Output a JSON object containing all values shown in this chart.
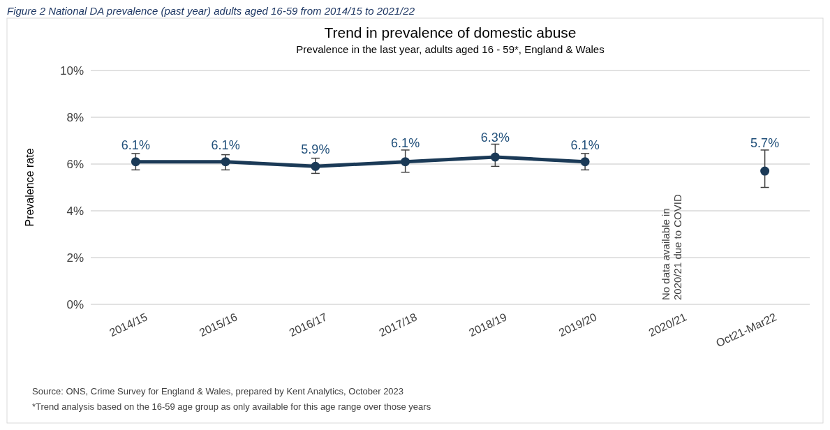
{
  "chart_data": {
    "type": "line",
    "title": "Trend in prevalence of domestic abuse",
    "subtitle": "Prevalence in the last year, adults aged 16 - 59*, England & Wales",
    "ylabel": "Prevalence rate",
    "categories": [
      "2014/15",
      "2015/16",
      "2016/17",
      "2017/18",
      "2018/19",
      "2019/20",
      "2020/21",
      "Oct21-Mar22"
    ],
    "series": [
      {
        "color": "#1b3a57",
        "values": [
          6.1,
          6.1,
          5.9,
          6.1,
          6.3,
          6.1,
          null,
          5.7
        ],
        "errors": [
          [
            5.75,
            6.45
          ],
          [
            5.75,
            6.4
          ],
          [
            5.6,
            6.25
          ],
          [
            5.65,
            6.6
          ],
          [
            5.9,
            6.85
          ],
          [
            5.75,
            6.45
          ],
          null,
          [
            5.0,
            6.6
          ]
        ],
        "value_labels": [
          "6.1%",
          "6.1%",
          "5.9%",
          "6.1%",
          "6.3%",
          "6.1%",
          null,
          "5.7%"
        ]
      }
    ],
    "ylim": [
      0,
      10
    ],
    "yticks": [
      {
        "value": 0,
        "label": "0%"
      },
      {
        "value": 2,
        "label": "2%"
      },
      {
        "value": 4,
        "label": "4%"
      },
      {
        "value": 6,
        "label": "6%"
      },
      {
        "value": 8,
        "label": "8%"
      },
      {
        "value": 10,
        "label": "10%"
      }
    ],
    "grid": "y",
    "marker": "circle",
    "line_style": "solid",
    "annotations": [
      "Figure 2 National DA prevalence (past year) adults aged 16-59 from 2014/15 to 2021/22",
      "No data available in\n2020/21 due to COVID",
      "Source: ONS, Crime Survey for England & Wales, prepared by Kent Analytics, October 2023",
      "*Trend analysis based on the 16-59 age group as only available for this age range over those years"
    ]
  }
}
